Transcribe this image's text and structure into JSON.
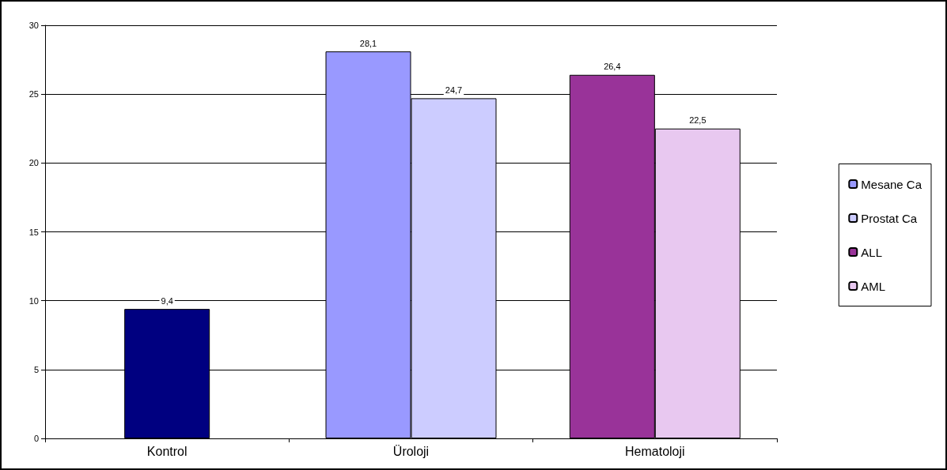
{
  "chart_data": {
    "type": "bar",
    "categories": [
      "Kontrol",
      "Üroloji",
      "Hematoloji"
    ],
    "series": [
      {
        "color": "#000080",
        "values": [
          9.4,
          null,
          null
        ],
        "value_labels": [
          "9,4",
          null,
          null
        ]
      },
      {
        "name": "Mesane Ca",
        "color": "#9999ff",
        "values": [
          null,
          28.1,
          null
        ],
        "value_labels": [
          null,
          "28,1",
          null
        ]
      },
      {
        "name": "Prostat Ca",
        "color": "#ccccff",
        "values": [
          null,
          24.7,
          null
        ],
        "value_labels": [
          null,
          "24,7",
          null
        ]
      },
      {
        "name": "ALL",
        "color": "#993399",
        "values": [
          null,
          null,
          26.4
        ],
        "value_labels": [
          null,
          null,
          "26,4"
        ]
      },
      {
        "name": "AML",
        "color": "#e8c8f0",
        "values": [
          null,
          null,
          22.5
        ],
        "value_labels": [
          null,
          null,
          "22,5"
        ]
      }
    ],
    "ylim": [
      0,
      30
    ],
    "yticks": [
      0,
      5,
      10,
      15,
      20,
      25,
      30
    ],
    "grid": "y",
    "legend": "right"
  }
}
